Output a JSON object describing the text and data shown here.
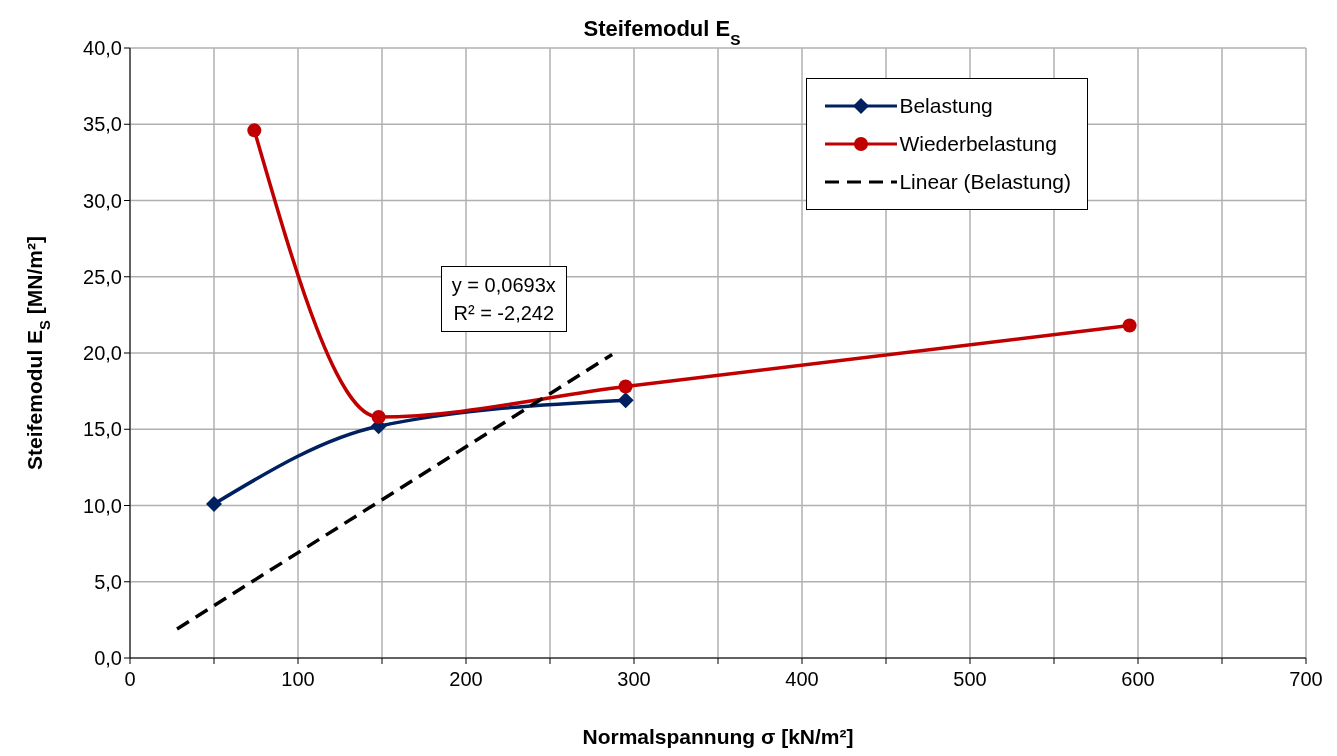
{
  "chart_data": {
    "type": "line",
    "title": "Steifemodul E$_{S}$",
    "xlabel": "Normalspannung  σ [kN/m²]",
    "ylabel": "Steifemodul E$_{S}$  [MN/m²]",
    "xlim": [
      0,
      700
    ],
    "xticks": [
      0,
      {
        "value": 50,
        "label": null
      },
      100,
      {
        "value": 150,
        "label": null
      },
      200,
      {
        "value": 250,
        "label": null
      },
      300,
      {
        "value": 350,
        "label": null
      },
      400,
      {
        "value": 450,
        "label": null
      },
      500,
      {
        "value": 550,
        "label": null
      },
      600,
      {
        "value": 650,
        "label": null
      },
      700
    ],
    "ylim": [
      0,
      40
    ],
    "yticks": [
      {
        "value": 0,
        "label": "0,0"
      },
      {
        "value": 5,
        "label": "5,0"
      },
      {
        "value": 10,
        "label": "10,0"
      },
      {
        "value": 15,
        "label": "15,0"
      },
      {
        "value": 20,
        "label": "20,0"
      },
      {
        "value": 25,
        "label": "25,0"
      },
      {
        "value": 30,
        "label": "30,0"
      },
      {
        "value": 35,
        "label": "35,0"
      },
      {
        "value": 40,
        "label": "40,0"
      }
    ],
    "grid": true,
    "legend": "top right",
    "series": [
      {
        "name": "Belastung",
        "color": "#002060",
        "x": [
          50,
          148,
          295
        ],
        "values": [
          10.1,
          15.2,
          16.9
        ],
        "marker": "diamond",
        "line_style": "solid"
      },
      {
        "name": "Wiederbelastung",
        "color": "#c00000",
        "x": [
          74,
          148,
          295,
          595
        ],
        "values": [
          34.6,
          15.8,
          17.8,
          21.8
        ],
        "marker": "circle",
        "line_style": "solid"
      },
      {
        "name": "Linear (Belastung)",
        "color": "#000000",
        "x": [
          28,
          287
        ],
        "values": [
          1.9,
          19.9
        ],
        "marker": "none",
        "line_style": "dashed"
      }
    ],
    "annotations": [
      "y = 0,0693x",
      "R² = -2,242"
    ]
  }
}
